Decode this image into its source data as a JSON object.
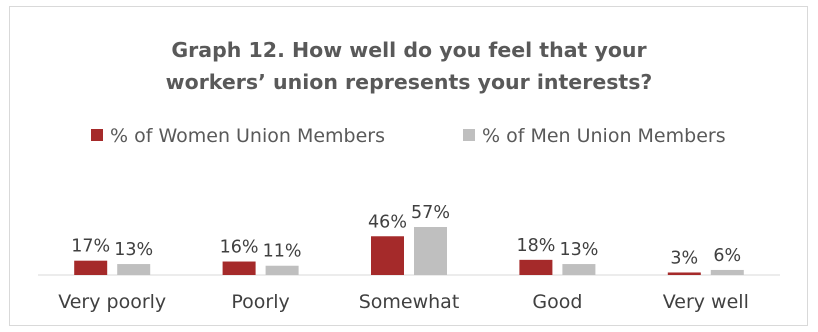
{
  "chart_data": {
    "type": "bar",
    "title_lines": [
      "Graph 12. How well do you feel that your",
      "workers’ union represents your interests?"
    ],
    "categories": [
      "Very poorly",
      "Poorly",
      "Somewhat",
      "Good",
      "Very well"
    ],
    "series": [
      {
        "name": "% of Women Union Members",
        "color": "#a52a2a",
        "values": [
          17,
          16,
          46,
          18,
          3
        ],
        "labels": [
          "17%",
          "16%",
          "46%",
          "18%",
          "3%"
        ]
      },
      {
        "name": "% of Men Union Members",
        "color": "#bfbfbf",
        "values": [
          13,
          11,
          57,
          13,
          6
        ],
        "labels": [
          "13%",
          "11%",
          "57%",
          "13%",
          "6%"
        ]
      }
    ],
    "ylim": [
      0,
      100
    ],
    "legend_position": "top",
    "grid": false,
    "xlabel": "",
    "ylabel": ""
  }
}
